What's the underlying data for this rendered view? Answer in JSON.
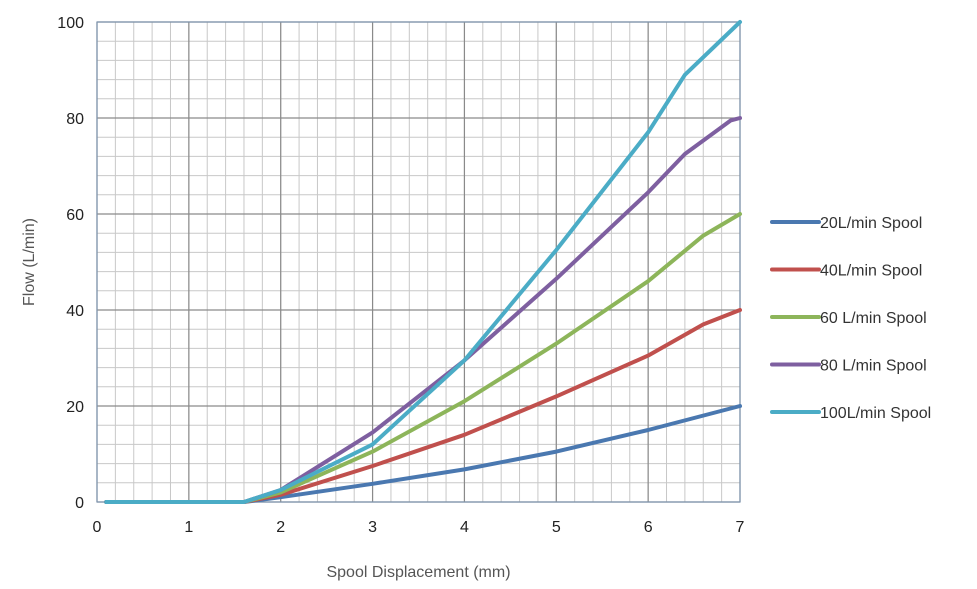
{
  "chart_data": {
    "type": "line",
    "xlabel": "Spool Displacement (mm)",
    "ylabel": "Flow (L/min)",
    "xlim": [
      0,
      7
    ],
    "ylim": [
      0,
      100
    ],
    "x_ticks": [
      "0",
      "1",
      "2",
      "3",
      "4",
      "5",
      "6",
      "7"
    ],
    "y_ticks": [
      "0",
      "20",
      "40",
      "60",
      "80",
      "100"
    ],
    "grid": true,
    "legend_position": "right",
    "series": [
      {
        "name": "20L/min Spool",
        "color": "#4a78b0",
        "points": [
          [
            0.1,
            0
          ],
          [
            1.6,
            0
          ],
          [
            2,
            1
          ],
          [
            3,
            3.8
          ],
          [
            4,
            6.8
          ],
          [
            5,
            10.5
          ],
          [
            6,
            15
          ],
          [
            7,
            20
          ]
        ]
      },
      {
        "name": "40L/min Spool",
        "color": "#c0504d",
        "points": [
          [
            0.1,
            0
          ],
          [
            1.6,
            0
          ],
          [
            2,
            1.5
          ],
          [
            3,
            7.5
          ],
          [
            4,
            14
          ],
          [
            5,
            22
          ],
          [
            6,
            30.5
          ],
          [
            6.6,
            37
          ],
          [
            7,
            40
          ]
        ]
      },
      {
        "name": "60 L/min Spool",
        "color": "#8db55a",
        "points": [
          [
            0.1,
            0
          ],
          [
            1.6,
            0
          ],
          [
            2,
            2
          ],
          [
            3,
            10.5
          ],
          [
            4,
            21
          ],
          [
            5,
            33
          ],
          [
            6,
            46
          ],
          [
            6.6,
            55.5
          ],
          [
            7,
            60
          ]
        ]
      },
      {
        "name": "80 L/min Spool",
        "color": "#7e5fa0",
        "points": [
          [
            0.1,
            0
          ],
          [
            1.6,
            0
          ],
          [
            2,
            2.5
          ],
          [
            3,
            14.5
          ],
          [
            4,
            29.5
          ],
          [
            5,
            46.5
          ],
          [
            6,
            64.5
          ],
          [
            6.4,
            72.5
          ],
          [
            6.9,
            79.5
          ],
          [
            7,
            80
          ]
        ]
      },
      {
        "name": "100L/min Spool",
        "color": "#4bacc6",
        "points": [
          [
            0.1,
            0
          ],
          [
            1.6,
            0
          ],
          [
            2,
            2.5
          ],
          [
            3,
            12
          ],
          [
            4,
            29.5
          ],
          [
            5,
            52.5
          ],
          [
            6,
            77
          ],
          [
            6.4,
            89
          ],
          [
            7,
            100
          ]
        ]
      }
    ]
  }
}
